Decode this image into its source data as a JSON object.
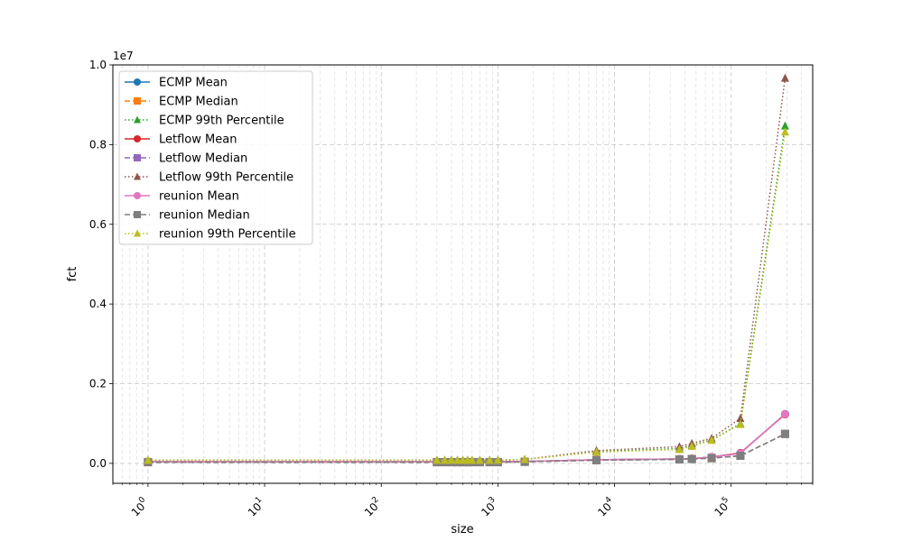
{
  "chart_data": {
    "type": "line",
    "title": "",
    "xlabel": "size",
    "ylabel": "fct",
    "y_offset_label": "1e7",
    "xscale": "log",
    "xlim": [
      0.5,
      500000
    ],
    "ylim": [
      -0.05,
      1.0
    ],
    "y_unit_multiplier": 10000000,
    "grid": true,
    "legend_position": "upper-left",
    "x_ticks": [
      1,
      10,
      100,
      1000,
      10000,
      100000
    ],
    "x_tick_labels": [
      "10^0",
      "10^1",
      "10^2",
      "10^3",
      "10^4",
      "10^5"
    ],
    "y_ticks": [
      0.0,
      0.2,
      0.4,
      0.6,
      0.8,
      1.0
    ],
    "y_tick_labels": [
      "0.0",
      "0.2",
      "0.4",
      "0.6",
      "0.8",
      "1.0"
    ],
    "x": [
      1,
      300,
      350,
      400,
      450,
      500,
      550,
      600,
      700,
      850,
      1000,
      1700,
      7000,
      36000,
      46000,
      68000,
      120000,
      290000
    ],
    "series": [
      {
        "name": "ECMP Mean",
        "color": "#1f77b4",
        "marker": "circle",
        "linestyle": "solid",
        "values": [
          0.004,
          0.004,
          0.004,
          0.004,
          0.004,
          0.004,
          0.004,
          0.004,
          0.004,
          0.004,
          0.004,
          0.005,
          0.009,
          0.011,
          0.012,
          0.016,
          0.026,
          0.124
        ]
      },
      {
        "name": "ECMP Median",
        "color": "#ff7f0e",
        "marker": "square",
        "linestyle": "dashed",
        "values": [
          0.003,
          0.003,
          0.003,
          0.003,
          0.003,
          0.003,
          0.003,
          0.003,
          0.003,
          0.003,
          0.003,
          0.004,
          0.008,
          0.01,
          0.011,
          0.013,
          0.019,
          0.074
        ]
      },
      {
        "name": "ECMP 99th Percentile",
        "color": "#2ca02c",
        "marker": "triangle",
        "linestyle": "dotted",
        "values": [
          0.008,
          0.008,
          0.008,
          0.008,
          0.008,
          0.008,
          0.008,
          0.008,
          0.008,
          0.008,
          0.008,
          0.01,
          0.03,
          0.037,
          0.045,
          0.059,
          0.1,
          0.847
        ]
      },
      {
        "name": "Letflow Mean",
        "color": "#d62728",
        "marker": "circle",
        "linestyle": "solid",
        "values": [
          0.004,
          0.004,
          0.004,
          0.004,
          0.004,
          0.004,
          0.004,
          0.004,
          0.004,
          0.004,
          0.004,
          0.005,
          0.009,
          0.011,
          0.012,
          0.016,
          0.026,
          0.123
        ]
      },
      {
        "name": "Letflow Median",
        "color": "#9467bd",
        "marker": "square",
        "linestyle": "dashed",
        "values": [
          0.003,
          0.003,
          0.003,
          0.003,
          0.003,
          0.003,
          0.003,
          0.003,
          0.003,
          0.003,
          0.003,
          0.004,
          0.008,
          0.01,
          0.011,
          0.014,
          0.019,
          0.074
        ]
      },
      {
        "name": "Letflow 99th Percentile",
        "color": "#8c564b",
        "marker": "triangle",
        "linestyle": "dotted",
        "values": [
          0.008,
          0.008,
          0.008,
          0.008,
          0.008,
          0.008,
          0.008,
          0.008,
          0.008,
          0.008,
          0.008,
          0.01,
          0.032,
          0.042,
          0.05,
          0.063,
          0.113,
          0.967
        ]
      },
      {
        "name": "reunion Mean",
        "color": "#e377c2",
        "marker": "circle",
        "linestyle": "solid",
        "values": [
          0.004,
          0.004,
          0.004,
          0.004,
          0.004,
          0.004,
          0.004,
          0.004,
          0.004,
          0.004,
          0.004,
          0.005,
          0.009,
          0.011,
          0.012,
          0.016,
          0.025,
          0.124
        ]
      },
      {
        "name": "reunion Median",
        "color": "#7f7f7f",
        "marker": "square",
        "linestyle": "dashed",
        "values": [
          0.003,
          0.003,
          0.003,
          0.003,
          0.003,
          0.003,
          0.003,
          0.003,
          0.003,
          0.003,
          0.003,
          0.004,
          0.008,
          0.01,
          0.011,
          0.013,
          0.019,
          0.074
        ]
      },
      {
        "name": "reunion 99th Percentile",
        "color": "#bcbd22",
        "marker": "triangle",
        "linestyle": "dotted",
        "values": [
          0.008,
          0.008,
          0.008,
          0.008,
          0.008,
          0.008,
          0.008,
          0.008,
          0.008,
          0.008,
          0.008,
          0.01,
          0.028,
          0.035,
          0.043,
          0.058,
          0.098,
          0.832
        ]
      }
    ]
  }
}
